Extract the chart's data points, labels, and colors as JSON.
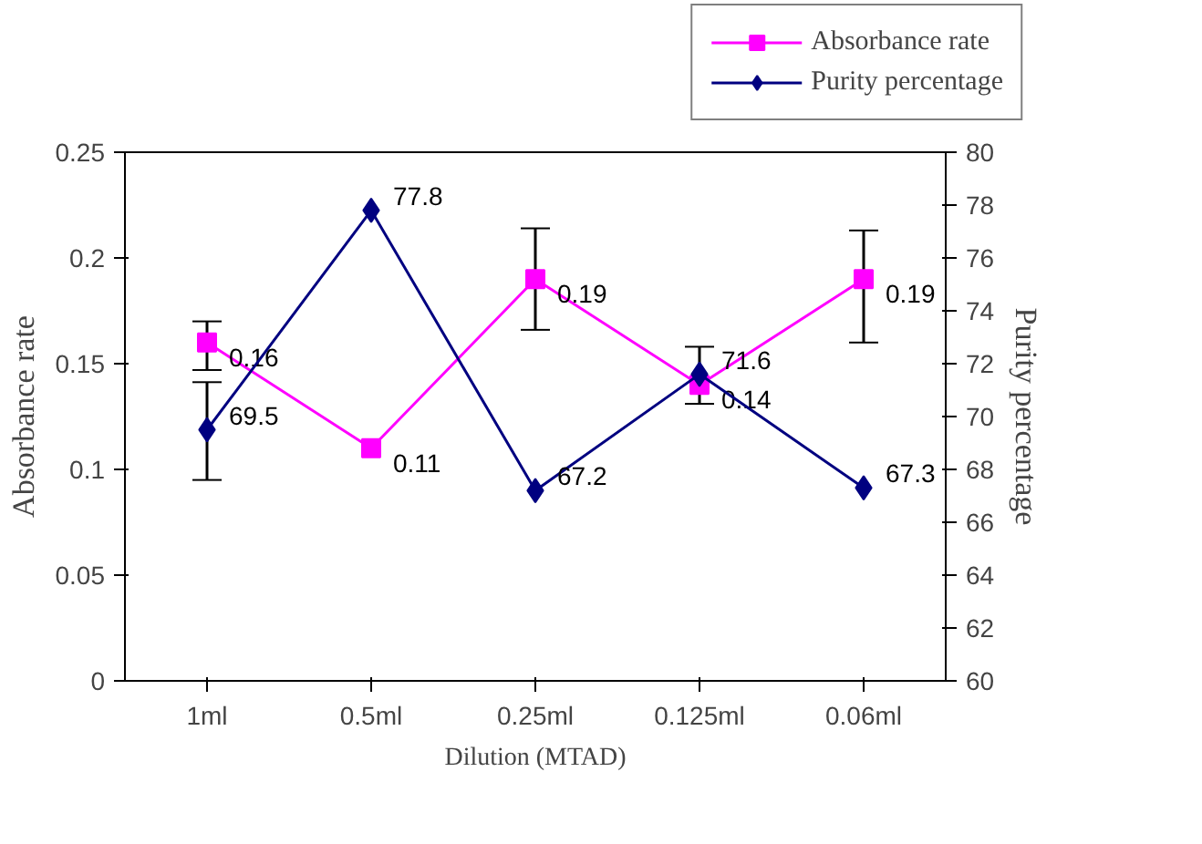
{
  "chart_data": {
    "type": "line",
    "xlabel": "Dilution (MTAD)",
    "ylabel": "Absorbance rate",
    "y2label": "Purity percentage",
    "categories": [
      "1ml",
      "0.5ml",
      "0.25ml",
      "0.125ml",
      "0.06ml"
    ],
    "series": [
      {
        "name": "Absorbance rate",
        "color": "#ff00ff",
        "marker": "square",
        "values": [
          0.16,
          0.11,
          0.19,
          0.14,
          0.19
        ],
        "errors": [
          [
            0.147,
            0.17
          ],
          null,
          [
            0.166,
            0.214
          ],
          [
            0.131,
            0.158
          ],
          [
            0.16,
            0.213
          ]
        ]
      },
      {
        "name": "Purity percentage",
        "color": "#000080",
        "marker": "diamond",
        "axis": "y2",
        "values": [
          69.5,
          77.8,
          67.2,
          71.6,
          67.3
        ],
        "errors": [
          [
            67.6,
            71.3
          ],
          null,
          null,
          null,
          null
        ]
      }
    ],
    "ylim": [
      0,
      0.25
    ],
    "yticks": [
      0,
      0.05,
      0.1,
      0.15,
      0.2,
      0.25
    ],
    "y2lim": [
      60,
      80
    ],
    "y2ticks": [
      60,
      62,
      64,
      66,
      68,
      70,
      72,
      74,
      76,
      78,
      80
    ],
    "data_labels": true,
    "grid": false,
    "legend": "top right"
  }
}
